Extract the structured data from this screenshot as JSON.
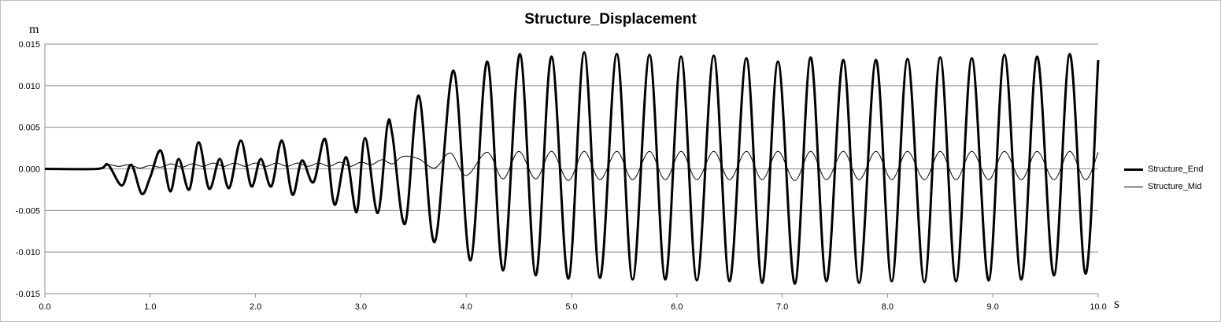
{
  "chart_data": {
    "type": "line",
    "title": "Structure_Displacement",
    "ylabel": "m",
    "xlabel": "s",
    "xlim": [
      0,
      10
    ],
    "ylim": [
      -0.015,
      0.015
    ],
    "x_ticks": [
      "0.0",
      "1.0",
      "2.0",
      "3.0",
      "4.0",
      "5.0",
      "6.0",
      "7.0",
      "8.0",
      "9.0",
      "10.0"
    ],
    "y_ticks": [
      "0.015",
      "0.010",
      "0.005",
      "0.000",
      "-0.005",
      "-0.010",
      "-0.015"
    ],
    "grid": "horizontal",
    "legend_position": "right",
    "series": [
      {
        "name": "Structure_End",
        "color": "#000000",
        "line_weight": "thick",
        "x": [
          0.0,
          0.5,
          0.6,
          0.73,
          0.82,
          0.92,
          1.0,
          1.1,
          1.19,
          1.27,
          1.37,
          1.46,
          1.56,
          1.66,
          1.75,
          1.86,
          1.96,
          2.05,
          2.15,
          2.25,
          2.35,
          2.44,
          2.55,
          2.66,
          2.75,
          2.86,
          2.96,
          3.04,
          3.16,
          3.25,
          3.3,
          3.42,
          3.55,
          3.7,
          3.88,
          4.04,
          4.2,
          4.35,
          4.51,
          4.66,
          4.81,
          4.97,
          5.12,
          5.27,
          5.43,
          5.58,
          5.74,
          5.89,
          6.04,
          6.19,
          6.35,
          6.5,
          6.66,
          6.81,
          6.96,
          7.12,
          7.27,
          7.42,
          7.58,
          7.73,
          7.89,
          8.04,
          8.19,
          8.35,
          8.5,
          8.65,
          8.8,
          8.96,
          9.11,
          9.27,
          9.42,
          9.58,
          9.73,
          9.88,
          10.0
        ],
        "y": [
          0.0,
          0.0,
          0.0005,
          -0.002,
          0.0005,
          -0.003,
          -0.001,
          0.0022,
          -0.0027,
          0.0012,
          -0.0025,
          0.0032,
          -0.0024,
          0.0012,
          -0.0023,
          0.0034,
          -0.0021,
          0.0012,
          -0.0021,
          0.0034,
          -0.0031,
          0.001,
          -0.0016,
          0.0036,
          -0.0043,
          0.0014,
          -0.0052,
          0.0037,
          -0.0053,
          0.0051,
          0.004,
          -0.0066,
          0.0088,
          -0.0088,
          0.0118,
          -0.011,
          0.0129,
          -0.0122,
          0.0138,
          -0.0128,
          0.0135,
          -0.0132,
          0.014,
          -0.0131,
          0.0138,
          -0.0133,
          0.0137,
          -0.0133,
          0.0135,
          -0.0134,
          0.0136,
          -0.0135,
          0.0133,
          -0.0137,
          0.0129,
          -0.0138,
          0.0134,
          -0.0135,
          0.0131,
          -0.0137,
          0.0131,
          -0.0135,
          0.0132,
          -0.0136,
          0.0134,
          -0.0135,
          0.0133,
          -0.0134,
          0.0137,
          -0.0133,
          0.0135,
          -0.0128,
          0.0138,
          -0.0126,
          0.0131
        ]
      },
      {
        "name": "Structure_Mid",
        "color": "#000000",
        "line_weight": "thin",
        "x": [
          0.0,
          0.5,
          0.6,
          0.7,
          0.8,
          0.9,
          1.0,
          1.1,
          1.2,
          1.3,
          1.4,
          1.5,
          1.6,
          1.7,
          1.8,
          1.9,
          2.0,
          2.1,
          2.2,
          2.3,
          2.4,
          2.5,
          2.6,
          2.7,
          2.8,
          2.9,
          3.0,
          3.1,
          3.2,
          3.3,
          3.4,
          3.55,
          3.7,
          3.85,
          4.0,
          4.2,
          4.35,
          4.5,
          4.66,
          4.81,
          4.97,
          5.12,
          5.27,
          5.43,
          5.58,
          5.74,
          5.89,
          6.04,
          6.19,
          6.35,
          6.5,
          6.66,
          6.81,
          6.96,
          7.12,
          7.27,
          7.42,
          7.58,
          7.73,
          7.89,
          8.04,
          8.19,
          8.35,
          8.5,
          8.65,
          8.8,
          8.96,
          9.11,
          9.27,
          9.42,
          9.58,
          9.73,
          9.88,
          10.0
        ],
        "y": [
          0.0,
          0.0,
          0.0005,
          0.0003,
          0.0005,
          0.0001,
          0.0004,
          0.0002,
          0.0006,
          0.0002,
          0.0006,
          0.0003,
          0.0007,
          0.0003,
          0.0007,
          0.0003,
          0.0007,
          0.0003,
          0.0007,
          0.0003,
          0.0007,
          0.0003,
          0.0007,
          0.0003,
          0.0008,
          0.0003,
          0.0008,
          0.0005,
          0.0011,
          0.0006,
          0.0015,
          0.0012,
          0.0001,
          0.0019,
          -0.0008,
          0.002,
          -0.0012,
          0.0021,
          -0.0012,
          0.0021,
          -0.0014,
          0.0021,
          -0.0013,
          0.0021,
          -0.0013,
          0.0021,
          -0.0013,
          0.0021,
          -0.0013,
          0.0021,
          -0.0013,
          0.0021,
          -0.0013,
          0.0021,
          -0.0014,
          0.0021,
          -0.0013,
          0.0021,
          -0.0013,
          0.0021,
          -0.0013,
          0.0021,
          -0.0013,
          0.0021,
          -0.0013,
          0.0021,
          -0.0013,
          0.0021,
          -0.0013,
          0.0021,
          -0.0013,
          0.0021,
          -0.0013,
          0.002
        ]
      }
    ]
  }
}
